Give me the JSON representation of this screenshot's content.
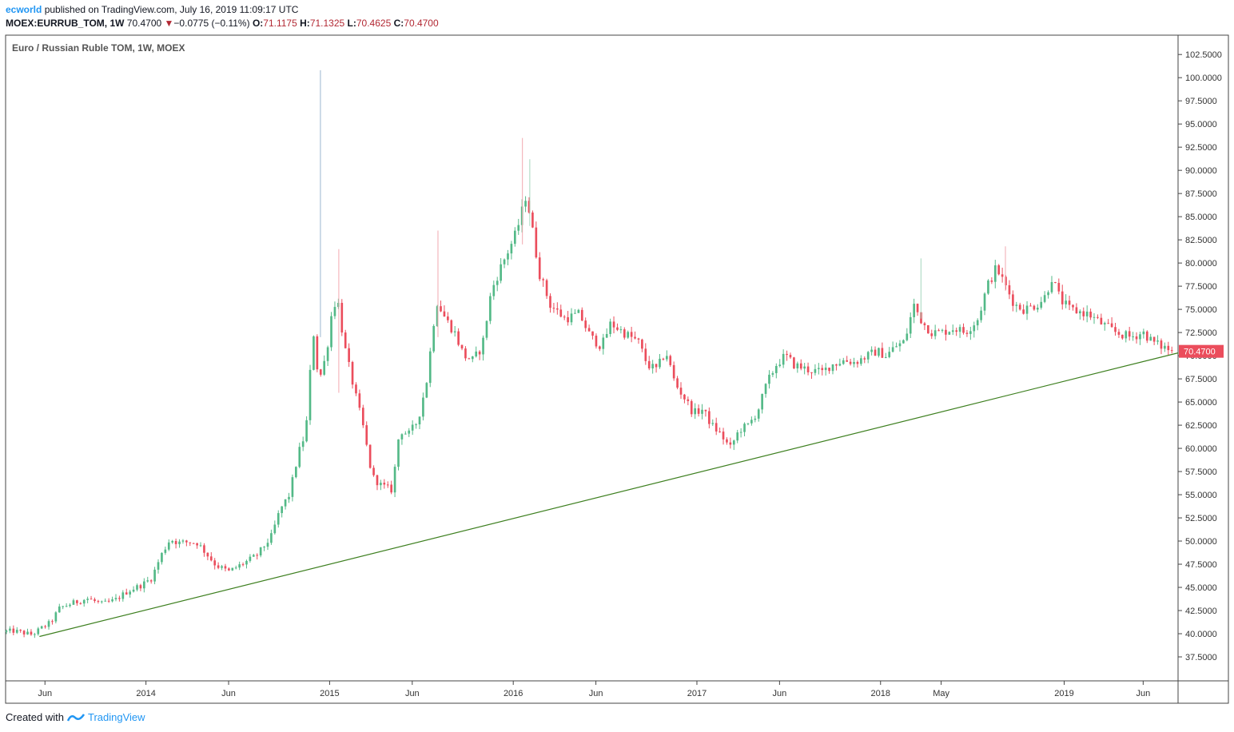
{
  "header": {
    "user": "ecworld",
    "published_text": "published on TradingView.com, July 16, 2019 11:09:17 UTC",
    "symbol": "MOEX:EURRUB_TOM, 1W",
    "last": "70.4700",
    "change": "−0.0775 (−0.11%)",
    "o_label": "O:",
    "o_value": "71.1175",
    "h_label": "H:",
    "h_value": "71.1325",
    "l_label": "L:",
    "l_value": "70.4625",
    "c_label": "C:",
    "c_value": "70.4700"
  },
  "footer": {
    "created_with": "Created with",
    "brand": "TradingView"
  },
  "colors": {
    "up": "#53b987",
    "down": "#eb4d5c",
    "trendline": "#3d7f1f",
    "price_tag": "#eb4d5c"
  },
  "chart_data": {
    "type": "candlestick",
    "title": "Euro / Russian Ruble TOM, 1W, MOEX",
    "last_price_label": "70.4700",
    "y_ticks": [
      "37.5000",
      "40.0000",
      "42.5000",
      "45.0000",
      "47.5000",
      "50.0000",
      "52.5000",
      "55.0000",
      "57.5000",
      "60.0000",
      "62.5000",
      "65.0000",
      "67.5000",
      "70.0000",
      "72.5000",
      "75.0000",
      "77.5000",
      "80.0000",
      "82.5000",
      "85.0000",
      "87.5000",
      "90.0000",
      "92.5000",
      "95.0000",
      "97.5000",
      "100.0000",
      "102.5000"
    ],
    "x_ticks": [
      "Jun",
      "2014",
      "Jun",
      "2015",
      "Jun",
      "2016",
      "Jun",
      "2017",
      "Jun",
      "2018",
      "May",
      "2019",
      "Jun"
    ],
    "ylim": [
      35.0,
      104.5
    ],
    "x_range": [
      2013.24,
      2019.62
    ],
    "x_tick_positions": [
      2013.45,
      2014.0,
      2014.45,
      2015.0,
      2015.45,
      2016.0,
      2016.45,
      2017.0,
      2017.45,
      2018.0,
      2018.33,
      2019.0,
      2019.43
    ],
    "trendline": {
      "x": [
        2013.42,
        2019.62
      ],
      "y": [
        39.7,
        70.3
      ]
    },
    "path": [
      [
        2013.24,
        40.2
      ],
      [
        2013.3,
        40.3
      ],
      [
        2013.4,
        39.9
      ],
      [
        2013.45,
        40.6
      ],
      [
        2013.5,
        41.2
      ],
      [
        2013.55,
        42.8
      ],
      [
        2013.62,
        43.3
      ],
      [
        2013.7,
        43.8
      ],
      [
        2013.78,
        43.2
      ],
      [
        2013.85,
        43.6
      ],
      [
        2013.92,
        44.6
      ],
      [
        2014.0,
        45.3
      ],
      [
        2014.05,
        46.0
      ],
      [
        2014.1,
        48.4
      ],
      [
        2014.15,
        50.2
      ],
      [
        2014.2,
        49.8
      ],
      [
        2014.25,
        49.9
      ],
      [
        2014.3,
        49.8
      ],
      [
        2014.35,
        48.6
      ],
      [
        2014.4,
        47.4
      ],
      [
        2014.47,
        46.7
      ],
      [
        2014.55,
        47.6
      ],
      [
        2014.62,
        48.4
      ],
      [
        2014.7,
        50.4
      ],
      [
        2014.75,
        53.4
      ],
      [
        2014.8,
        55.0
      ],
      [
        2014.85,
        59.5
      ],
      [
        2014.89,
        61.8
      ],
      [
        2014.93,
        72.8
      ],
      [
        2014.96,
        67.2
      ],
      [
        2015.0,
        70.0
      ],
      [
        2015.03,
        74.5
      ],
      [
        2015.06,
        76.5
      ],
      [
        2015.1,
        71.0
      ],
      [
        2015.15,
        66.6
      ],
      [
        2015.2,
        62.5
      ],
      [
        2015.25,
        57.0
      ],
      [
        2015.3,
        56.0
      ],
      [
        2015.36,
        55.5
      ],
      [
        2015.4,
        62.0
      ],
      [
        2015.45,
        61.5
      ],
      [
        2015.5,
        63.0
      ],
      [
        2015.55,
        67.5
      ],
      [
        2015.6,
        76.0
      ],
      [
        2015.65,
        74.0
      ],
      [
        2015.7,
        72.5
      ],
      [
        2015.75,
        70.0
      ],
      [
        2015.8,
        69.5
      ],
      [
        2015.85,
        71.0
      ],
      [
        2015.9,
        77.0
      ],
      [
        2015.95,
        79.5
      ],
      [
        2016.03,
        83.0
      ],
      [
        2016.06,
        85.0
      ],
      [
        2016.09,
        87.5
      ],
      [
        2016.12,
        84.0
      ],
      [
        2016.16,
        79.0
      ],
      [
        2016.22,
        75.5
      ],
      [
        2016.3,
        74.0
      ],
      [
        2016.38,
        74.5
      ],
      [
        2016.44,
        72.0
      ],
      [
        2016.5,
        71.0
      ],
      [
        2016.55,
        73.5
      ],
      [
        2016.62,
        72.5
      ],
      [
        2016.7,
        71.5
      ],
      [
        2016.75,
        69.0
      ],
      [
        2016.8,
        68.5
      ],
      [
        2016.85,
        70.5
      ],
      [
        2016.9,
        67.0
      ],
      [
        2016.95,
        65.5
      ],
      [
        2017.0,
        63.8
      ],
      [
        2017.05,
        64.2
      ],
      [
        2017.1,
        62.5
      ],
      [
        2017.15,
        61.5
      ],
      [
        2017.2,
        60.0
      ],
      [
        2017.25,
        62.0
      ],
      [
        2017.3,
        62.5
      ],
      [
        2017.35,
        64.0
      ],
      [
        2017.4,
        67.0
      ],
      [
        2017.45,
        69.0
      ],
      [
        2017.5,
        70.0
      ],
      [
        2017.55,
        69.0
      ],
      [
        2017.62,
        68.5
      ],
      [
        2017.7,
        68.2
      ],
      [
        2017.75,
        69.0
      ],
      [
        2017.82,
        69.5
      ],
      [
        2017.88,
        69.3
      ],
      [
        2017.95,
        70.0
      ],
      [
        2018.0,
        70.5
      ],
      [
        2018.05,
        70.0
      ],
      [
        2018.1,
        71.0
      ],
      [
        2018.15,
        71.5
      ],
      [
        2018.2,
        75.5
      ],
      [
        2018.25,
        73.5
      ],
      [
        2018.3,
        72.5
      ],
      [
        2018.35,
        72.5
      ],
      [
        2018.42,
        73.0
      ],
      [
        2018.48,
        72.5
      ],
      [
        2018.55,
        74.0
      ],
      [
        2018.6,
        77.5
      ],
      [
        2018.65,
        79.5
      ],
      [
        2018.7,
        77.5
      ],
      [
        2018.75,
        75.5
      ],
      [
        2018.8,
        75.0
      ],
      [
        2018.87,
        75.5
      ],
      [
        2018.92,
        76.5
      ],
      [
        2018.95,
        78.5
      ],
      [
        2019.0,
        76.0
      ],
      [
        2019.05,
        75.0
      ],
      [
        2019.15,
        74.5
      ],
      [
        2019.22,
        73.5
      ],
      [
        2019.3,
        72.5
      ],
      [
        2019.38,
        72.0
      ],
      [
        2019.45,
        72.5
      ],
      [
        2019.5,
        71.5
      ],
      [
        2019.55,
        71.0
      ],
      [
        2019.58,
        70.8
      ],
      [
        2019.6,
        70.47
      ]
    ],
    "spikes": [
      {
        "x": 2014.95,
        "low": 72.0,
        "high": 100.8
      },
      {
        "x": 2016.05,
        "low": 82.0,
        "high": 93.5
      },
      {
        "x": 2016.09,
        "low": 84.0,
        "high": 91.2
      },
      {
        "x": 2015.59,
        "low": 72.0,
        "high": 83.5
      },
      {
        "x": 2018.22,
        "low": 74.0,
        "high": 80.5
      },
      {
        "x": 2018.68,
        "low": 77.0,
        "high": 81.8
      },
      {
        "x": 2015.05,
        "low": 66.0,
        "high": 81.5
      }
    ]
  }
}
